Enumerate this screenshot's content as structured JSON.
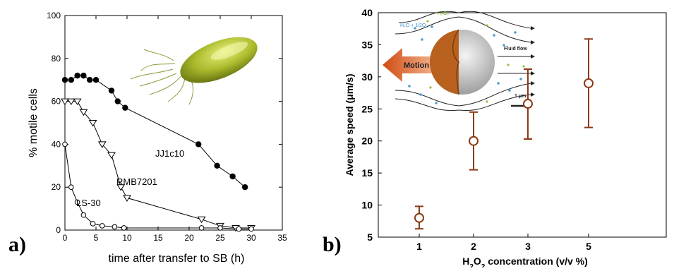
{
  "panels": {
    "a_label": "a)",
    "b_label": "b)"
  },
  "chart_data": [
    {
      "type": "line",
      "panel": "a",
      "xlabel": "time after transfer to SB (h)",
      "ylabel": "% motile cells",
      "xlim": [
        0,
        35
      ],
      "ylim": [
        0,
        100
      ],
      "x_ticks": [
        "0",
        "5",
        "10",
        "15",
        "20",
        "25",
        "30",
        "35"
      ],
      "y_ticks": [
        "0",
        "20",
        "40",
        "60",
        "80",
        "100"
      ],
      "grid": false,
      "legend": "none",
      "series": [
        {
          "name": "JJ1c10",
          "marker": "filled-circle",
          "color": "#000000",
          "points": [
            [
              0,
              70
            ],
            [
              1,
              70
            ],
            [
              2,
              72
            ],
            [
              3,
              72
            ],
            [
              4,
              70
            ],
            [
              5,
              70
            ],
            [
              7.5,
              65
            ],
            [
              8.5,
              60
            ],
            [
              9.7,
              57
            ],
            [
              21.5,
              40
            ],
            [
              24.5,
              30
            ],
            [
              27,
              25
            ],
            [
              29,
              20
            ]
          ]
        },
        {
          "name": "RMB7201",
          "marker": "open-triangle-down",
          "color": "#000000",
          "points": [
            [
              0,
              60
            ],
            [
              1,
              60
            ],
            [
              2,
              60
            ],
            [
              3,
              55
            ],
            [
              4.5,
              50
            ],
            [
              6,
              40
            ],
            [
              7.5,
              35
            ],
            [
              9,
              20
            ],
            [
              10,
              15
            ],
            [
              22,
              5
            ],
            [
              25,
              2
            ],
            [
              27.5,
              1
            ],
            [
              30,
              1
            ]
          ]
        },
        {
          "name": "LS-30",
          "marker": "open-circle",
          "color": "#000000",
          "points": [
            [
              0,
              40
            ],
            [
              1,
              20
            ],
            [
              2,
              13
            ],
            [
              3,
              7
            ],
            [
              4.5,
              3
            ],
            [
              6,
              2
            ],
            [
              8,
              1.5
            ],
            [
              9.5,
              1
            ],
            [
              22,
              1
            ],
            [
              25,
              1
            ],
            [
              28,
              0.5
            ],
            [
              30,
              0.5
            ]
          ]
        }
      ]
    },
    {
      "type": "scatter",
      "panel": "b",
      "xlabel_prefix": "H",
      "xlabel_sub1": "2",
      "xlabel_mid": "O",
      "xlabel_sub2": "2",
      "xlabel_suffix": " concentration (v/v %)",
      "ylabel": "Average speed (μm/s)",
      "ylim": [
        5,
        40
      ],
      "categories": [
        "1",
        "2",
        "3",
        "5"
      ],
      "y_ticks": [
        "5",
        "10",
        "15",
        "20",
        "25",
        "30",
        "35",
        "40"
      ],
      "grid": false,
      "color": "#8b3a14",
      "series": [
        {
          "values": [
            8,
            20,
            25.8,
            29
          ],
          "err_low": [
            6.3,
            15.5,
            20.3,
            22.1
          ],
          "err_high": [
            9.8,
            24.5,
            31.2,
            35.9
          ]
        }
      ]
    }
  ],
  "inset_b": {
    "motion_label": "Motion",
    "fluid_label": "Fluid flow",
    "scale_label": "1 μm",
    "h2o2_label": "H₂O₂",
    "products_label": "H₂O + 1/2O₂"
  }
}
